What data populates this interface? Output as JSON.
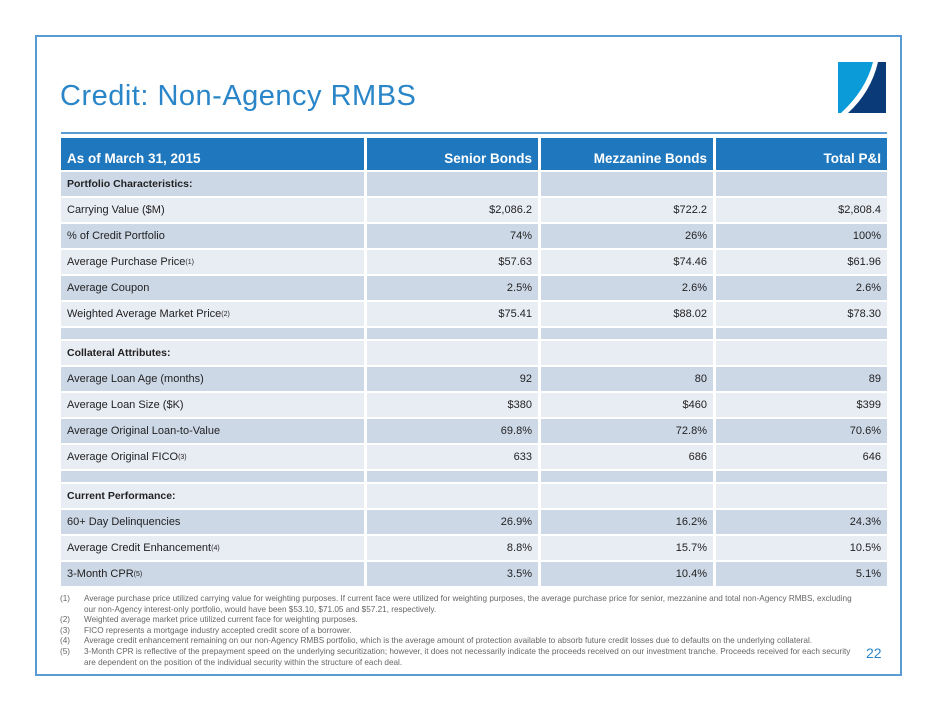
{
  "slide": {
    "title": "Credit: Non-Agency RMBS",
    "page_number": "22",
    "accent_color": "#1f78be"
  },
  "table": {
    "headers": [
      "As of March 31, 2015",
      "Senior Bonds",
      "Mezzanine Bonds",
      "Total P&I"
    ],
    "rows": [
      {
        "label": "Portfolio Characteristics:",
        "type": "section",
        "values": [
          "",
          "",
          ""
        ]
      },
      {
        "label": "Carrying Value ($M)",
        "values": [
          "$2,086.2",
          "$722.2",
          "$2,808.4"
        ]
      },
      {
        "label": "% of Credit Portfolio",
        "values": [
          "74%",
          "26%",
          "100%"
        ]
      },
      {
        "label": "Average Purchase Price",
        "sup": "(1)",
        "values": [
          "$57.63",
          "$74.46",
          "$61.96"
        ]
      },
      {
        "label": "Average Coupon",
        "values": [
          "2.5%",
          "2.6%",
          "2.6%"
        ]
      },
      {
        "label": "Weighted Average Market Price",
        "sup": "(2)",
        "values": [
          "$75.41",
          "$88.02",
          "$78.30"
        ]
      },
      {
        "label": "",
        "type": "spacer",
        "values": [
          "",
          "",
          ""
        ]
      },
      {
        "label": "Collateral Attributes:",
        "type": "section",
        "values": [
          "",
          "",
          ""
        ]
      },
      {
        "label": "Average Loan Age (months)",
        "values": [
          "92",
          "80",
          "89"
        ]
      },
      {
        "label": "Average Loan Size ($K)",
        "values": [
          "$380",
          "$460",
          "$399"
        ]
      },
      {
        "label": "Average Original Loan-to-Value",
        "values": [
          "69.8%",
          "72.8%",
          "70.6%"
        ]
      },
      {
        "label": "Average Original FICO",
        "sup": "(3)",
        "values": [
          "633",
          "686",
          "646"
        ]
      },
      {
        "label": "",
        "type": "spacer",
        "values": [
          "",
          "",
          ""
        ]
      },
      {
        "label": "Current Performance:",
        "type": "section",
        "values": [
          "",
          "",
          ""
        ]
      },
      {
        "label": "60+ Day Delinquencies",
        "values": [
          "26.9%",
          "16.2%",
          "24.3%"
        ]
      },
      {
        "label": "Average Credit Enhancement",
        "sup": "(4)",
        "values": [
          "8.8%",
          "15.7%",
          "10.5%"
        ]
      },
      {
        "label": "3-Month CPR",
        "sup": "(5)",
        "values": [
          "3.5%",
          "10.4%",
          "5.1%"
        ]
      }
    ]
  },
  "footnotes": [
    {
      "num": "(1)",
      "text": "Average purchase price utilized carrying value for weighting purposes. If current face were utilized for weighting purposes, the average purchase price for senior, mezzanine and total non-Agency RMBS, excluding our non-Agency interest-only portfolio, would have been $53.10, $71.05 and $57.21, respectively."
    },
    {
      "num": "(2)",
      "text": "Weighted average market price utilized current face for weighting purposes."
    },
    {
      "num": "(3)",
      "text": "FICO represents a mortgage industry accepted credit score of a borrower."
    },
    {
      "num": "(4)",
      "text": "Average credit enhancement remaining on our non-Agency RMBS portfolio, which is the average amount of protection available to absorb future credit losses due to defaults on the underlying collateral."
    },
    {
      "num": "(5)",
      "text": "3-Month CPR is reflective of the prepayment speed on the underlying securitization; however, it does not necessarily indicate the proceeds received on our investment tranche. Proceeds received for each security are dependent on the position of the individual security within the structure of each deal."
    }
  ]
}
